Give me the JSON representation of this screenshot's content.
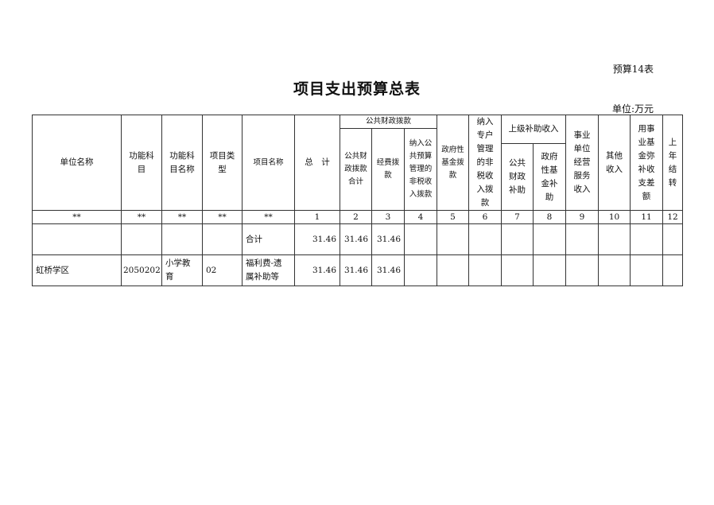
{
  "doc": {
    "tag": "预算14表",
    "title": "项目支出预算总表",
    "unit": "单位:万元"
  },
  "headers": {
    "unit_name": "单位名称",
    "func_code": "功能科\n目",
    "func_name": "功能科\n目名称",
    "proj_type": "项目类\n型",
    "proj_name": "项目名称",
    "total": "总　计",
    "public_group": "公共财政拨款",
    "public_total": "公共财\n政拨款\n合计",
    "funding": "经费拨\n款",
    "nontax": "纳入公\n共预算\n管理的\n非税收\n入拨款",
    "govfund": "政府性\n基金拨\n款",
    "special": "纳入\n专户\n管理\n的非\n税收\n入拨\n款",
    "upper_group": "上级补助收入",
    "upper_public": "公共\n财政\n补助",
    "upper_govfund": "政府\n性基\n金补\n助",
    "business": "事业\n单位\n经营\n服务\n收入",
    "other": "其他\n收入",
    "reserve": "用事\n业基\n金弥\n补收\n支差\n额",
    "carryover": "上\n年\n结\n转"
  },
  "index_row": [
    "**",
    "**",
    "**",
    "**",
    "**",
    "1",
    "2",
    "3",
    "4",
    "5",
    "6",
    "7",
    "8",
    "9",
    "10",
    "11",
    "12"
  ],
  "rows": [
    {
      "unit": "",
      "func_code": "",
      "func_name": "",
      "proj_type": "",
      "proj_name": "合计",
      "total": "31.46",
      "public_total": "31.46",
      "funding": "31.46"
    },
    {
      "unit": "虹桥学区",
      "func_code": "2050202",
      "func_name": "小学教\n育",
      "proj_type": "02",
      "proj_name": "福利费-遗\n属补助等",
      "total": "31.46",
      "public_total": "31.46",
      "funding": "31.46"
    }
  ]
}
